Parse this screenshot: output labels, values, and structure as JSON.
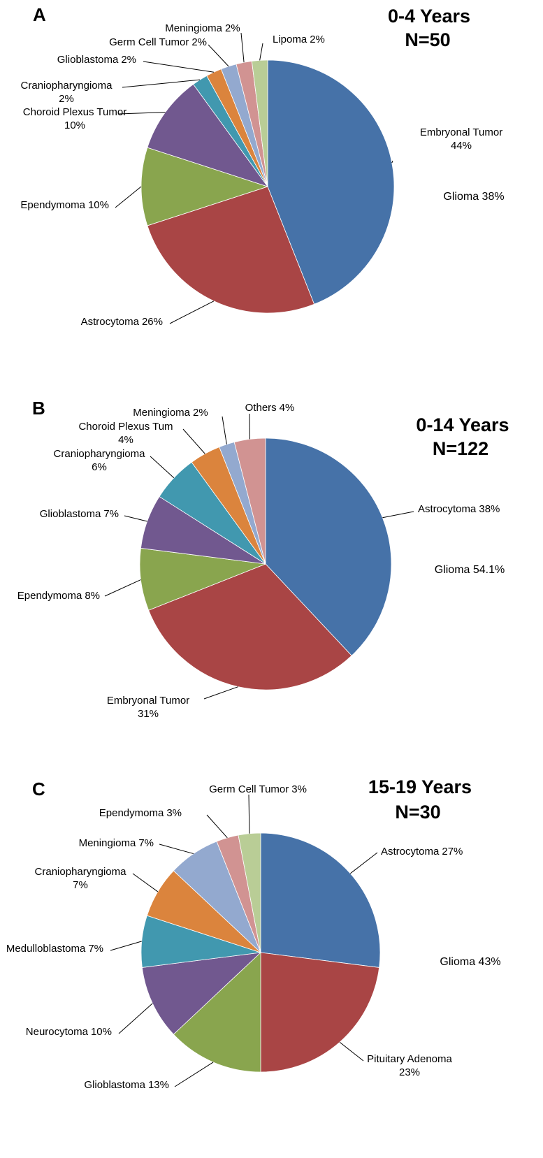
{
  "chart_data": [
    {
      "type": "pie",
      "panel_label": "A",
      "title": "0-4 Years",
      "subtitle": "N=50",
      "annotation": "Glioma 38%",
      "categories": [
        "Embryonal Tumor",
        "Astrocytoma",
        "Ependymoma",
        "Choroid Plexus Tumor",
        "Craniopharyngioma",
        "Glioblastoma",
        "Germ Cell Tumor",
        "Meningioma",
        "Lipoma"
      ],
      "values": [
        44,
        26,
        10,
        10,
        2,
        2,
        2,
        2,
        2
      ],
      "value_labels": [
        "44%",
        "26%",
        "10%",
        "10%",
        "2%",
        "2%",
        "2%",
        "2%",
        "2%"
      ],
      "colors": [
        "#4672a8",
        "#a94545",
        "#89a54e",
        "#71588f",
        "#4198af",
        "#db843d",
        "#93a9cf",
        "#d19392",
        "#b9cd96"
      ]
    },
    {
      "type": "pie",
      "panel_label": "B",
      "title": "0-14 Years",
      "subtitle": "N=122",
      "annotation": "Glioma 54.1%",
      "categories": [
        "Astrocytoma",
        "Embryonal Tumor",
        "Ependymoma",
        "Glioblastoma",
        "Craniopharyngioma",
        "Choroid Plexus Tum",
        "Meningioma",
        "Others"
      ],
      "values": [
        38,
        31,
        8,
        7,
        6,
        4,
        2,
        4
      ],
      "value_labels": [
        "38%",
        "31%",
        "8%",
        "7%",
        "6%",
        "4%",
        "2%",
        "4%"
      ],
      "colors": [
        "#4672a8",
        "#a94545",
        "#89a54e",
        "#71588f",
        "#4198af",
        "#db843d",
        "#93a9cf",
        "#d19392"
      ]
    },
    {
      "type": "pie",
      "panel_label": "C",
      "title": "15-19 Years",
      "subtitle": "N=30",
      "annotation": "Glioma 43%",
      "categories": [
        "Astrocytoma",
        "Pituitary Adenoma",
        "Glioblastoma",
        "Neurocytoma",
        "Medulloblastoma",
        "Craniopharyngioma",
        "Meningioma",
        "Ependymoma",
        "Germ Cell Tumor"
      ],
      "values": [
        27,
        23,
        13,
        10,
        7,
        7,
        7,
        3,
        3
      ],
      "value_labels": [
        "27%",
        "23%",
        "13%",
        "10%",
        "7%",
        "7%",
        "7%",
        "3%",
        "3%"
      ],
      "colors": [
        "#4672a8",
        "#a94545",
        "#89a54e",
        "#71588f",
        "#4198af",
        "#db843d",
        "#93a9cf",
        "#d19392",
        "#b9cd96"
      ]
    }
  ]
}
